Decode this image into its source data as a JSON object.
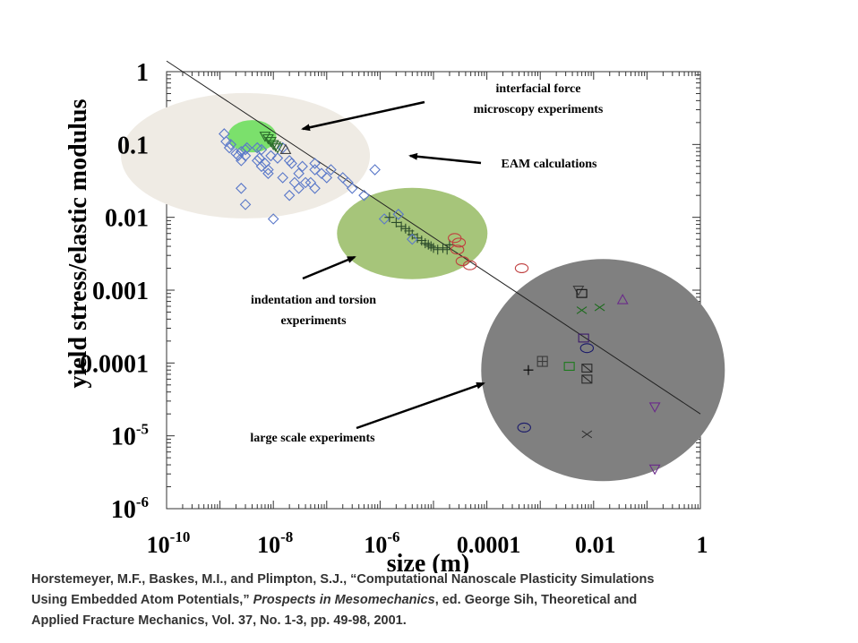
{
  "chart_data": {
    "type": "scatter",
    "title": "",
    "xlabel": "size (m)",
    "ylabel": "yield stress/elastic modulus",
    "xscale": "log",
    "yscale": "log",
    "xlim": [
      1e-10,
      1
    ],
    "ylim": [
      1e-06,
      1
    ],
    "x_ticks": [
      {
        "value": 1e-10,
        "base": "10",
        "exp": "-10"
      },
      {
        "value": 1e-08,
        "base": "10",
        "exp": "-8"
      },
      {
        "value": 1e-06,
        "base": "10",
        "exp": "-6"
      },
      {
        "value": 0.0001,
        "base": "0.0001",
        "exp": ""
      },
      {
        "value": 0.01,
        "base": "0.01",
        "exp": ""
      },
      {
        "value": 1,
        "base": "1",
        "exp": ""
      }
    ],
    "y_ticks": [
      {
        "value": 1,
        "base": "1",
        "exp": ""
      },
      {
        "value": 0.1,
        "base": "0.1",
        "exp": ""
      },
      {
        "value": 0.01,
        "base": "0.01",
        "exp": ""
      },
      {
        "value": 0.001,
        "base": "0.001",
        "exp": ""
      },
      {
        "value": 0.0001,
        "base": "0.0001",
        "exp": ""
      },
      {
        "value": 1e-05,
        "base": "10",
        "exp": "-5"
      },
      {
        "value": 1e-06,
        "base": "10",
        "exp": "-6"
      }
    ],
    "trend_line": {
      "x": [
        1e-10,
        1
      ],
      "y": [
        1.4,
        2e-05
      ]
    },
    "regions": [
      {
        "label": "EAM calculations",
        "center": [
          3e-09,
          0.07
        ],
        "color": "#efebe4"
      },
      {
        "label": "interfacial force microscopy experiments",
        "center": [
          4e-09,
          0.13
        ],
        "color": "#7be06c"
      },
      {
        "label": "indentation and torsion experiments",
        "center": [
          4e-06,
          0.006
        ],
        "color": "#a6c57a"
      },
      {
        "label": "large scale experiments",
        "center": [
          0.015,
          8e-05
        ],
        "color": "#808080"
      }
    ],
    "annotations": [
      {
        "lines": [
          "interfacial force",
          "microscopy experiments"
        ]
      },
      {
        "lines": [
          "EAM calculations"
        ]
      },
      {
        "lines": [
          "indentation and torsion",
          "experiments"
        ]
      },
      {
        "lines": [
          "large scale experiments"
        ]
      }
    ],
    "series": [
      {
        "marker": "diamond",
        "color": "#5b79c9",
        "x": [
          1.2e-09,
          1.3e-09,
          1.5e-09,
          1.6e-09,
          2e-09,
          2.2e-09,
          2.5e-09,
          3e-09,
          3.2e-09,
          2.5e-09,
          3e-09,
          5e-09,
          6e-09,
          5.5e-09,
          7e-09,
          8e-09,
          9e-09,
          1.2e-08,
          1.5e-08,
          2e-08,
          2.2e-08,
          3e-08,
          3.5e-08,
          5e-08,
          6e-08,
          8e-08,
          1e-07,
          2e-07,
          2.5e-07,
          3e-07,
          5e-07,
          8e-07,
          1.2e-07,
          6e-08,
          2.5e-09,
          3e-09,
          8e-09,
          1.5e-08,
          2e-08,
          2.5e-08,
          3e-08,
          4e-08,
          6e-08,
          1.2e-06,
          2.2e-06,
          1e-08,
          5e-09,
          6e-09
        ],
        "y": [
          0.14,
          0.11,
          0.09,
          0.1,
          0.075,
          0.07,
          0.08,
          0.085,
          0.09,
          0.06,
          0.07,
          0.06,
          0.05,
          0.065,
          0.055,
          0.045,
          0.07,
          0.065,
          0.09,
          0.06,
          0.055,
          0.04,
          0.05,
          0.03,
          0.045,
          0.04,
          0.035,
          0.035,
          0.03,
          0.025,
          0.02,
          0.045,
          0.045,
          0.055,
          0.025,
          0.015,
          0.04,
          0.035,
          0.02,
          0.03,
          0.025,
          0.03,
          0.025,
          0.0095,
          0.011,
          0.0095,
          0.09,
          0.085
        ]
      },
      {
        "marker": "triangle-down",
        "color": "#2a6a2a",
        "x": [
          7e-09,
          8e-09,
          9e-09,
          1e-08,
          1.1e-08,
          1.2e-08
        ],
        "y": [
          0.13,
          0.12,
          0.11,
          0.1,
          0.095,
          0.09
        ]
      },
      {
        "marker": "triangle",
        "color": "#444444",
        "x": [
          1.7e-08
        ],
        "y": [
          0.085
        ]
      },
      {
        "marker": "plus",
        "color": "#2a4a2a",
        "x": [
          1.5e-06,
          2e-06,
          2.5e-06,
          3e-06,
          3.5e-06,
          4e-06,
          5e-06,
          6e-06,
          7e-06,
          8e-06,
          9e-06,
          1e-05,
          1.2e-05,
          1.5e-05,
          1.8e-05,
          2e-05
        ],
        "y": [
          0.01,
          0.0085,
          0.0075,
          0.007,
          0.0065,
          0.0058,
          0.0052,
          0.0048,
          0.0044,
          0.0042,
          0.004,
          0.0038,
          0.0036,
          0.0038,
          0.0036,
          0.0042
        ]
      },
      {
        "marker": "circle",
        "color": "#c04040",
        "x": [
          2.5e-05,
          3e-05,
          2.8e-05,
          3.5e-05,
          4.8e-05,
          0.00045
        ],
        "y": [
          0.0052,
          0.0045,
          0.0036,
          0.0025,
          0.0022,
          0.002
        ]
      },
      {
        "marker": "diamond",
        "color": "#5b79c9",
        "x": [
          4e-06
        ],
        "y": [
          0.005
        ]
      },
      {
        "marker": "triangle-down",
        "color": "#3a3a3a",
        "x": [
          0.0052
        ],
        "y": [
          0.001
        ]
      },
      {
        "marker": "square",
        "color": "#111111",
        "x": [
          0.006
        ],
        "y": [
          0.0009
        ]
      },
      {
        "marker": "x",
        "color": "#1c6a1c",
        "x": [
          0.006,
          0.013
        ],
        "y": [
          0.00053,
          0.00058
        ]
      },
      {
        "marker": "triangle",
        "color": "#6a2a8a",
        "x": [
          0.035
        ],
        "y": [
          0.00074
        ]
      },
      {
        "marker": "square",
        "color": "#3a1a6a",
        "x": [
          0.0065
        ],
        "y": [
          0.00022
        ]
      },
      {
        "marker": "circle",
        "color": "#1a1a6a",
        "x": [
          0.0075
        ],
        "y": [
          0.00016
        ]
      },
      {
        "marker": "square-plus",
        "color": "#3a3a3a",
        "x": [
          0.0011
        ],
        "y": [
          0.000105
        ]
      },
      {
        "marker": "plus",
        "color": "#000000",
        "x": [
          0.0006
        ],
        "y": [
          8e-05
        ]
      },
      {
        "marker": "square",
        "color": "#1c7a1c",
        "x": [
          0.0035
        ],
        "y": [
          9e-05
        ]
      },
      {
        "marker": "square-x",
        "color": "#2a2a2a",
        "x": [
          0.0075,
          0.0075
        ],
        "y": [
          8.5e-05,
          6e-05
        ]
      },
      {
        "marker": "triangle-down",
        "color": "#6a2a8a",
        "x": [
          0.14,
          0.14
        ],
        "y": [
          2.5e-05,
          3.5e-06
        ]
      },
      {
        "marker": "circle-dot",
        "color": "#1a1a6a",
        "x": [
          0.0005
        ],
        "y": [
          1.3e-05
        ]
      },
      {
        "marker": "x",
        "color": "#333333",
        "x": [
          0.0075
        ],
        "y": [
          1.05e-05
        ]
      }
    ]
  },
  "citation": {
    "line1": "Horstemeyer, M.F., Baskes, M.I., and Plimpton, S.J., “Computational Nanoscale Plasticity Simulations",
    "line2_pre": "Using Embedded Atom Potentials,” ",
    "line2_italic": "Prospects in Mesomechanics",
    "line2_post": ", ed. George Sih, Theoretical and",
    "line3": "Applied Fracture Mechanics, Vol. 37, No. 1-3, pp. 49-98, 2001."
  }
}
